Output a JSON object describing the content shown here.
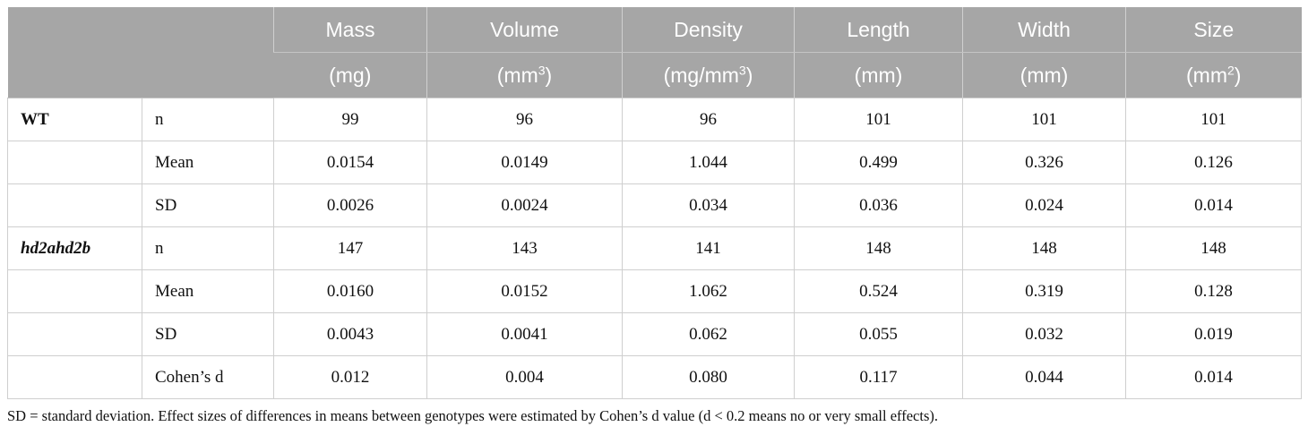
{
  "table": {
    "headers": [
      {
        "name": "Mass",
        "unit": "(mg)",
        "unit_base": "(mg)",
        "unit_sup": "",
        "unit_tail": ""
      },
      {
        "name": "Volume",
        "unit": "(mm3)",
        "unit_base": "(mm",
        "unit_sup": "3",
        "unit_tail": ")"
      },
      {
        "name": "Density",
        "unit": "(mg/mm3)",
        "unit_base": "(mg/mm",
        "unit_sup": "3",
        "unit_tail": ")"
      },
      {
        "name": "Length",
        "unit": "(mm)",
        "unit_base": "(mm)",
        "unit_sup": "",
        "unit_tail": ""
      },
      {
        "name": "Width",
        "unit": "(mm)",
        "unit_base": "(mm)",
        "unit_sup": "",
        "unit_tail": ""
      },
      {
        "name": "Size",
        "unit": "(mm2)",
        "unit_base": "(mm",
        "unit_sup": "2",
        "unit_tail": ")"
      }
    ],
    "rows": [
      {
        "group": "WT",
        "stat": "n",
        "values": [
          "99",
          "96",
          "96",
          "101",
          "101",
          "101"
        ]
      },
      {
        "group": "",
        "stat": "Mean",
        "values": [
          "0.0154",
          "0.0149",
          "1.044",
          "0.499",
          "0.326",
          "0.126"
        ]
      },
      {
        "group": "",
        "stat": "SD",
        "values": [
          "0.0026",
          "0.0024",
          "0.034",
          "0.036",
          "0.024",
          "0.014"
        ]
      },
      {
        "group": "hd2ahd2b",
        "stat": "n",
        "values": [
          "147",
          "143",
          "141",
          "148",
          "148",
          "148"
        ]
      },
      {
        "group": "",
        "stat": "Mean",
        "values": [
          "0.0160",
          "0.0152",
          "1.062",
          "0.524",
          "0.319",
          "0.128"
        ]
      },
      {
        "group": "",
        "stat": "SD",
        "values": [
          "0.0043",
          "0.0041",
          "0.062",
          "0.055",
          "0.032",
          "0.019"
        ]
      },
      {
        "group": "",
        "stat": "Cohen’s d",
        "values": [
          "0.012",
          "0.004",
          "0.080",
          "0.117",
          "0.044",
          "0.014"
        ]
      }
    ]
  },
  "footnote": "SD = standard deviation. Effect sizes of differences in means between genotypes were estimated by Cohen’s d value (d < 0.2 means no or very small effects).",
  "colors": {
    "header_bg": "#a6a6a6",
    "header_text": "#ffffff",
    "border": "#cfcfcf"
  }
}
